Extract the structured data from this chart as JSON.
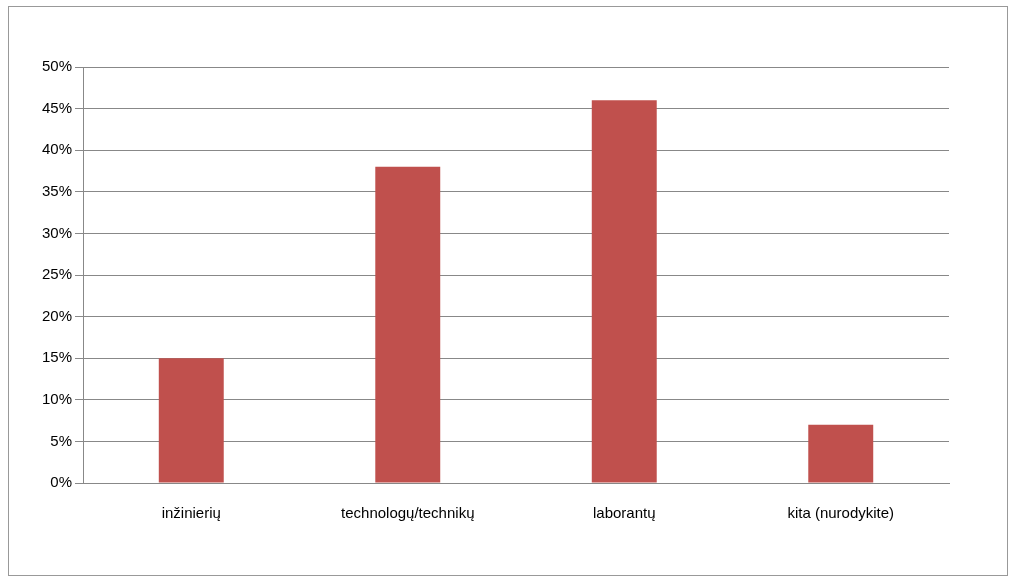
{
  "chart_data": {
    "type": "bar",
    "categories": [
      "inžinierių",
      "technologų/technikų",
      "laborantų",
      "kita (nurodykite)"
    ],
    "values": [
      15,
      38,
      46,
      7
    ],
    "color": "#c0504d",
    "ylim": [
      0,
      50
    ],
    "yticks": [
      {
        "value": 0,
        "label": "0%"
      },
      {
        "value": 5,
        "label": "5%"
      },
      {
        "value": 10,
        "label": "10%"
      },
      {
        "value": 15,
        "label": "15%"
      },
      {
        "value": 20,
        "label": "20%"
      },
      {
        "value": 25,
        "label": "25%"
      },
      {
        "value": 30,
        "label": "30%"
      },
      {
        "value": 35,
        "label": "35%"
      },
      {
        "value": 40,
        "label": "40%"
      },
      {
        "value": 45,
        "label": "45%"
      },
      {
        "value": 50,
        "label": "50%"
      }
    ],
    "grid": "y",
    "legend": false
  }
}
